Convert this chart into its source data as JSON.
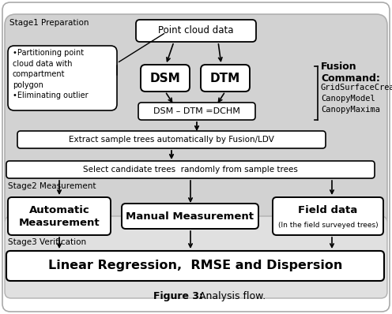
{
  "title": "Figure 3:",
  "title_suffix": " Analysis flow.",
  "fig_bg": "#ffffff",
  "stage1_label": "Stage1 Preparation",
  "stage2_label": "Stage2 Measurement",
  "stage3_label": "Stage3 Verification",
  "gray_bg": "#d0d0d0",
  "stage23_bg": "#d8d8d8",
  "box_white": "#ffffff",
  "box_border": "#000000",
  "fusion_bold": "Fusion\nCommand:",
  "fusion_normal": "GridSurfaceCreate\nCanopyModel\nCanopyMaxima",
  "point_cloud_text": "Point cloud data",
  "dsm_text": "DSM",
  "dtm_text": "DTM",
  "dchm_text": "DSM – DTM =DCHM",
  "extract_text": "Extract sample trees automatically by Fusion/LDV",
  "select_text": "Select candidate trees  randomly from sample trees",
  "auto_meas_text": "Automatic\nMeasurement",
  "manual_meas_text": "Manual Measurement",
  "field_data_line1": "Field data",
  "field_data_line2": "(In the field surveyed trees)",
  "linear_text": "Linear Regression,  RMSE and Dispersion",
  "bullet_text": "•Partitioning point\ncloud data with\ncompartment\npolygon\n•Eliminating outlier"
}
